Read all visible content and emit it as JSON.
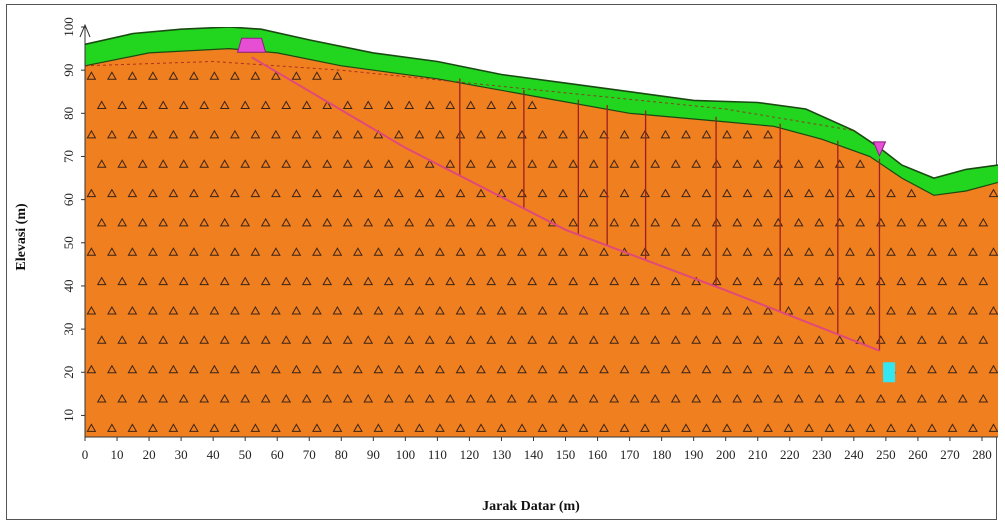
{
  "chart_data": {
    "type": "cross-section",
    "xlabel": "Jarak Datar (m)",
    "ylabel": "Elevasi (m)",
    "xlim": [
      0,
      285
    ],
    "ylim": [
      5,
      100
    ],
    "x_ticks": [
      0,
      10,
      20,
      30,
      40,
      50,
      60,
      70,
      80,
      90,
      100,
      110,
      120,
      130,
      140,
      150,
      160,
      170,
      180,
      190,
      200,
      210,
      220,
      230,
      240,
      250,
      260,
      270,
      280
    ],
    "y_ticks": [
      10,
      20,
      30,
      40,
      50,
      60,
      70,
      80,
      90,
      100
    ],
    "ground_surface": [
      {
        "x": 0,
        "y": 96
      },
      {
        "x": 15,
        "y": 98.5
      },
      {
        "x": 30,
        "y": 99.5
      },
      {
        "x": 45,
        "y": 100
      },
      {
        "x": 55,
        "y": 99.5
      },
      {
        "x": 70,
        "y": 97
      },
      {
        "x": 90,
        "y": 94
      },
      {
        "x": 110,
        "y": 92
      },
      {
        "x": 130,
        "y": 89
      },
      {
        "x": 150,
        "y": 87
      },
      {
        "x": 170,
        "y": 85
      },
      {
        "x": 190,
        "y": 83
      },
      {
        "x": 210,
        "y": 82.5
      },
      {
        "x": 225,
        "y": 81
      },
      {
        "x": 240,
        "y": 76
      },
      {
        "x": 248,
        "y": 72
      },
      {
        "x": 255,
        "y": 68
      },
      {
        "x": 265,
        "y": 65
      },
      {
        "x": 275,
        "y": 67
      },
      {
        "x": 285,
        "y": 68
      }
    ],
    "topsoil_base": [
      {
        "x": 0,
        "y": 91
      },
      {
        "x": 20,
        "y": 94
      },
      {
        "x": 45,
        "y": 95
      },
      {
        "x": 60,
        "y": 94
      },
      {
        "x": 80,
        "y": 91
      },
      {
        "x": 110,
        "y": 88
      },
      {
        "x": 140,
        "y": 84
      },
      {
        "x": 170,
        "y": 80
      },
      {
        "x": 200,
        "y": 78
      },
      {
        "x": 215,
        "y": 77
      },
      {
        "x": 230,
        "y": 74
      },
      {
        "x": 245,
        "y": 70
      },
      {
        "x": 255,
        "y": 65
      },
      {
        "x": 265,
        "y": 61
      },
      {
        "x": 275,
        "y": 62
      },
      {
        "x": 285,
        "y": 64
      }
    ],
    "slip_surface": [
      {
        "x": 52,
        "y": 93
      },
      {
        "x": 100,
        "y": 72
      },
      {
        "x": 150,
        "y": 53
      },
      {
        "x": 200,
        "y": 39
      },
      {
        "x": 248,
        "y": 25
      }
    ],
    "slice_lines_x": [
      117,
      137,
      154,
      163,
      175,
      197,
      217,
      235,
      248
    ],
    "water_table": [
      {
        "x": 0,
        "y": 91
      },
      {
        "x": 40,
        "y": 92
      },
      {
        "x": 80,
        "y": 90
      },
      {
        "x": 120,
        "y": 87
      },
      {
        "x": 160,
        "y": 84
      },
      {
        "x": 200,
        "y": 81
      },
      {
        "x": 240,
        "y": 76
      }
    ],
    "colors": {
      "rock": "#f07f1f",
      "topsoil": "#22d61f",
      "boundary": "#1a4a12",
      "slip_line": "#e0497a",
      "slice_line": "#9b1f1f",
      "marker_top": "#e64fd4",
      "marker_bottom": "#33e6f0",
      "hatch": "#3b2416"
    },
    "markers": [
      {
        "name": "slip-entry-marker",
        "x": 52,
        "y": 96,
        "color_key": "marker_top"
      },
      {
        "name": "slip-exit-marker",
        "x": 248,
        "y": 72,
        "color_key": "marker_top"
      },
      {
        "name": "toe-marker",
        "x": 251,
        "y": 20,
        "color_key": "marker_bottom"
      }
    ]
  }
}
